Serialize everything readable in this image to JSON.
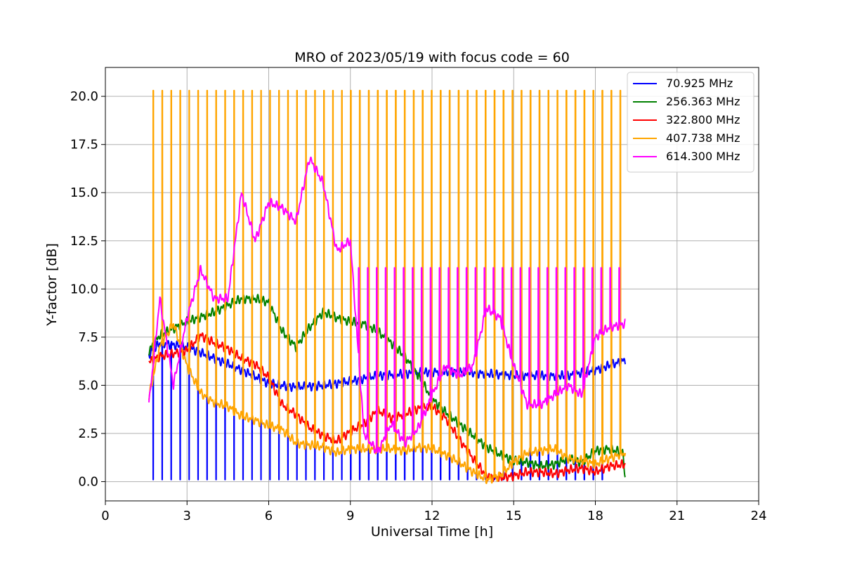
{
  "chart_data": {
    "type": "line",
    "title": "MRO of 2023/05/19 with focus code = 60",
    "xlabel": "Universal Time [h]",
    "ylabel": "Y-factor [dB]",
    "xlim": [
      0,
      24
    ],
    "ylim": [
      -1.0,
      21.5
    ],
    "xticks": [
      0,
      3,
      6,
      9,
      12,
      15,
      18,
      21,
      24
    ],
    "xtick_labels": [
      "0",
      "3",
      "6",
      "9",
      "12",
      "15",
      "18",
      "21",
      "24"
    ],
    "yticks": [
      0.0,
      2.5,
      5.0,
      7.5,
      10.0,
      12.5,
      15.0,
      17.5,
      20.0
    ],
    "ytick_labels": [
      "0.0",
      "2.5",
      "5.0",
      "7.5",
      "10.0",
      "12.5",
      "15.0",
      "17.5",
      "20.0"
    ],
    "grid": true,
    "legend_position": "top-right",
    "series": [
      {
        "name": " 70.925 MHz",
        "color": "#0000ff",
        "x": [
          1.6,
          2,
          3,
          4,
          5,
          6,
          7,
          8,
          9,
          10,
          11,
          12,
          13,
          14,
          15,
          16,
          17,
          18,
          19.1
        ],
        "y": [
          6.6,
          7.2,
          7.0,
          6.4,
          5.8,
          5.1,
          4.9,
          5.0,
          5.2,
          5.5,
          5.6,
          5.7,
          5.7,
          5.6,
          5.5,
          5.5,
          5.5,
          5.8,
          6.3
        ],
        "dips": {
          "period_h": 0.33,
          "start": 1.75,
          "end": 18.4,
          "low": 0.1
        }
      },
      {
        "name": "256.363 MHz",
        "color": "#008000",
        "x": [
          1.6,
          2,
          3,
          4,
          5,
          5.5,
          6,
          6.5,
          7,
          7.5,
          8,
          8.5,
          9,
          9.5,
          10,
          10.5,
          11,
          11.5,
          12,
          12.5,
          13,
          13.5,
          14,
          14.5,
          15,
          15.5,
          16,
          16.5,
          17,
          17.5,
          18,
          18.5,
          19,
          19.1
        ],
        "y": [
          6.8,
          7.6,
          8.3,
          8.8,
          9.5,
          9.5,
          9.3,
          7.8,
          7.0,
          8.0,
          8.8,
          8.5,
          8.3,
          8.2,
          7.8,
          7.2,
          6.5,
          5.5,
          4.3,
          3.6,
          3.0,
          2.4,
          1.8,
          1.4,
          1.1,
          1.0,
          0.8,
          0.9,
          1.2,
          1.0,
          1.6,
          1.7,
          1.5,
          0.3
        ]
      },
      {
        "name": "322.800 MHz",
        "color": "#ff0000",
        "x": [
          1.6,
          2,
          3,
          3.5,
          4,
          4.5,
          5,
          5.5,
          6,
          6.5,
          7,
          7.5,
          8,
          8.5,
          9,
          9.5,
          10,
          10.5,
          11,
          11.5,
          12,
          12.5,
          13,
          13.5,
          14,
          14.5,
          15,
          15.5,
          16,
          16.5,
          17,
          17.5,
          18,
          18.5,
          19.1
        ],
        "y": [
          6.2,
          6.5,
          6.8,
          7.6,
          7.2,
          6.9,
          6.4,
          6.1,
          5.4,
          4.0,
          3.5,
          2.8,
          2.4,
          2.1,
          2.6,
          3.0,
          3.7,
          3.3,
          3.5,
          3.8,
          3.9,
          3.3,
          2.2,
          1.2,
          0.3,
          0.2,
          0.3,
          0.5,
          0.5,
          0.4,
          0.6,
          0.7,
          0.5,
          0.8,
          0.9
        ]
      },
      {
        "name": "407.738 MHz",
        "color": "#ffa500",
        "x": [
          1.6,
          2,
          2.5,
          3,
          3.5,
          4,
          4.5,
          5,
          5.5,
          6,
          6.5,
          7,
          7.5,
          8,
          8.5,
          9,
          9.5,
          10,
          10.5,
          11,
          11.5,
          12,
          12.5,
          13,
          13.5,
          14,
          14.5,
          15,
          15.5,
          16,
          16.5,
          17,
          17.5,
          18,
          18.5,
          19.1
        ],
        "y": [
          4.4,
          7.0,
          8.2,
          6.0,
          4.6,
          4.1,
          3.9,
          3.4,
          3.2,
          2.9,
          2.7,
          2.0,
          1.9,
          1.8,
          1.5,
          1.7,
          1.7,
          1.7,
          1.7,
          1.6,
          1.8,
          1.7,
          1.4,
          1.0,
          0.5,
          0.1,
          0.3,
          1.0,
          1.5,
          1.6,
          1.7,
          1.2,
          1.1,
          0.9,
          1.2,
          1.5
        ],
        "spikes": {
          "period_h": 0.33,
          "start": 1.75,
          "end": 19.0,
          "high": 20.3
        }
      },
      {
        "name": "614.300 MHz",
        "color": "#ff00ff",
        "x": [
          1.6,
          2,
          2.5,
          3,
          3.5,
          4,
          4.5,
          5,
          5.5,
          6,
          6.5,
          7,
          7.5,
          8,
          8.5,
          9,
          9.5,
          10,
          10.5,
          11,
          11.5,
          12,
          12.5,
          13,
          13.5,
          14,
          14.5,
          15,
          15.5,
          16,
          16.5,
          17,
          17.5,
          18,
          18.5,
          19.1
        ],
        "y": [
          4.0,
          9.5,
          5.0,
          8.5,
          11.0,
          9.5,
          9.5,
          15.0,
          12.5,
          14.5,
          14.2,
          13.5,
          16.8,
          15.5,
          12.0,
          12.5,
          2.5,
          1.5,
          3.0,
          2.0,
          2.8,
          4.5,
          6.0,
          5.5,
          6.0,
          9.0,
          8.5,
          6.0,
          4.0,
          4.0,
          4.5,
          5.0,
          4.5,
          7.5,
          8.0,
          8.2
        ],
        "spikes": {
          "period_h": 0.33,
          "start": 9.3,
          "end": 19.0,
          "high": 11.1
        }
      }
    ]
  }
}
